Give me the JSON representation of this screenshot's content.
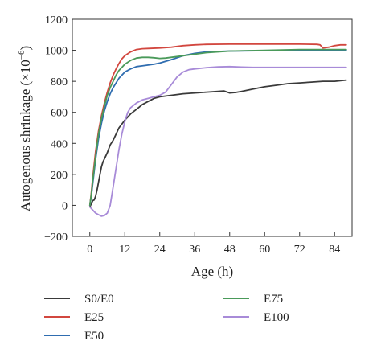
{
  "chart_data": {
    "type": "line",
    "title": "",
    "xlabel": "Age (h)",
    "ylabel": "Autogenous shrinkage (×10",
    "ylabel_sup": "−6",
    "ylabel_close": ")",
    "xlim": [
      -6,
      90
    ],
    "ylim": [
      -200,
      1200
    ],
    "xticks": [
      0,
      12,
      24,
      36,
      48,
      60,
      72,
      84
    ],
    "xtick_labels": [
      "0",
      "12",
      "24",
      "36",
      "48",
      "60",
      "72",
      "84"
    ],
    "yticks": [
      -200,
      0,
      200,
      400,
      600,
      800,
      1000,
      1200
    ],
    "ytick_labels": [
      "−200",
      "0",
      "200",
      "400",
      "600",
      "800",
      "1000",
      "1200"
    ],
    "grid": false,
    "legend_position": "bottom",
    "series": [
      {
        "name": "S0/E0",
        "color": "#3a3a3a",
        "x": [
          0,
          0.5,
          1,
          1.5,
          2,
          2.5,
          3,
          3.5,
          4,
          4.5,
          5,
          6,
          7,
          8,
          9,
          10,
          12,
          14,
          16,
          18,
          20,
          22,
          24,
          28,
          32,
          36,
          40,
          44,
          46,
          48,
          50,
          52,
          56,
          60,
          64,
          68,
          72,
          76,
          80,
          84,
          88
        ],
        "values": [
          -10,
          10,
          30,
          35,
          60,
          100,
          150,
          200,
          250,
          280,
          300,
          340,
          390,
          420,
          460,
          500,
          550,
          590,
          620,
          650,
          670,
          690,
          700,
          710,
          720,
          725,
          730,
          735,
          738,
          725,
          728,
          735,
          750,
          765,
          775,
          785,
          790,
          795,
          800,
          800,
          808
        ]
      },
      {
        "name": "E25",
        "color": "#d2473f",
        "x": [
          0,
          0.5,
          1,
          2,
          3,
          4,
          5,
          6,
          7,
          8,
          9,
          10,
          11,
          12,
          14,
          16,
          18,
          20,
          24,
          28,
          32,
          36,
          40,
          48,
          60,
          72,
          78,
          79,
          80,
          82,
          84,
          86,
          88
        ],
        "values": [
          0,
          80,
          180,
          350,
          480,
          580,
          660,
          730,
          790,
          840,
          880,
          915,
          945,
          965,
          990,
          1005,
          1010,
          1012,
          1015,
          1020,
          1030,
          1035,
          1038,
          1040,
          1040,
          1040,
          1038,
          1035,
          1015,
          1020,
          1030,
          1035,
          1035
        ]
      },
      {
        "name": "E50",
        "color": "#2f6db0",
        "x": [
          0,
          0.5,
          1,
          2,
          3,
          4,
          5,
          6,
          7,
          8,
          9,
          10,
          12,
          14,
          16,
          18,
          20,
          22,
          24,
          28,
          32,
          36,
          40,
          48,
          60,
          72,
          84,
          88
        ],
        "values": [
          0,
          60,
          140,
          300,
          430,
          530,
          610,
          670,
          720,
          760,
          790,
          820,
          860,
          880,
          895,
          900,
          905,
          910,
          918,
          940,
          965,
          980,
          990,
          995,
          998,
          1000,
          1002,
          1002
        ]
      },
      {
        "name": "E75",
        "color": "#4a9a5a",
        "x": [
          0,
          0.5,
          1,
          2,
          3,
          4,
          5,
          6,
          7,
          8,
          9,
          10,
          12,
          14,
          16,
          18,
          20,
          22,
          24,
          26,
          30,
          36,
          40,
          48,
          60,
          72,
          84,
          88
        ],
        "values": [
          0,
          70,
          160,
          320,
          460,
          560,
          640,
          710,
          760,
          800,
          840,
          870,
          910,
          935,
          950,
          955,
          955,
          952,
          948,
          950,
          960,
          975,
          985,
          995,
          1000,
          1005,
          1005,
          1005
        ]
      },
      {
        "name": "E100",
        "color": "#a88bd8",
        "x": [
          0,
          1,
          2,
          3,
          4,
          5,
          6,
          7,
          8,
          9,
          10,
          11,
          12,
          13,
          14,
          16,
          18,
          20,
          22,
          24,
          26,
          28,
          30,
          32,
          34,
          36,
          40,
          44,
          48,
          52,
          56,
          60,
          72,
          84,
          88
        ],
        "values": [
          -10,
          -30,
          -50,
          -60,
          -70,
          -65,
          -50,
          0,
          120,
          240,
          360,
          460,
          540,
          600,
          630,
          660,
          680,
          690,
          700,
          710,
          730,
          780,
          830,
          860,
          875,
          880,
          888,
          893,
          895,
          892,
          890,
          890,
          890,
          890,
          890
        ]
      }
    ]
  }
}
